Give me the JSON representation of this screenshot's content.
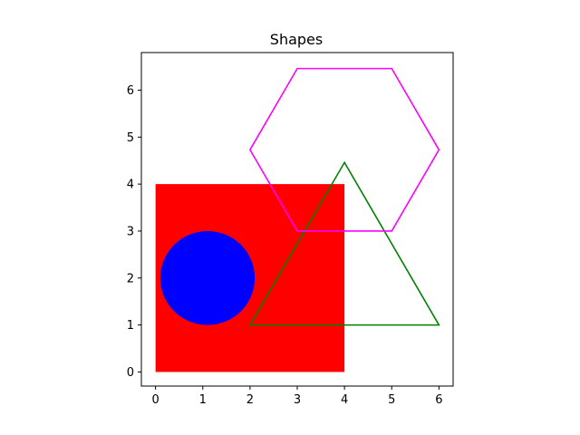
{
  "chart_data": {
    "type": "shapes",
    "title": "Shapes",
    "xlabel": "",
    "ylabel": "",
    "xlim": [
      -0.3,
      6.3
    ],
    "ylim": [
      -0.3,
      6.8
    ],
    "xticks": [
      0,
      1,
      2,
      3,
      4,
      5,
      6
    ],
    "yticks": [
      0,
      1,
      2,
      3,
      4,
      5,
      6
    ],
    "grid": false,
    "shapes": [
      {
        "kind": "rectangle",
        "fill": "#ff0000",
        "stroke": "none",
        "x": 0,
        "y": 0,
        "width": 4,
        "height": 4
      },
      {
        "kind": "circle",
        "fill": "#0000ff",
        "stroke": "none",
        "cx": 1.1,
        "cy": 2.0,
        "r": 1.0
      },
      {
        "kind": "polygon",
        "name": "triangle",
        "fill": "none",
        "stroke": "#008000",
        "points": [
          [
            2,
            1
          ],
          [
            6,
            1
          ],
          [
            4,
            4.46
          ]
        ]
      },
      {
        "kind": "polygon",
        "name": "hexagon",
        "fill": "none",
        "stroke": "#ff00ff",
        "points": [
          [
            3,
            3
          ],
          [
            5,
            3
          ],
          [
            6,
            4.73
          ],
          [
            5,
            6.46
          ],
          [
            3,
            6.46
          ],
          [
            2,
            4.73
          ]
        ]
      }
    ]
  }
}
